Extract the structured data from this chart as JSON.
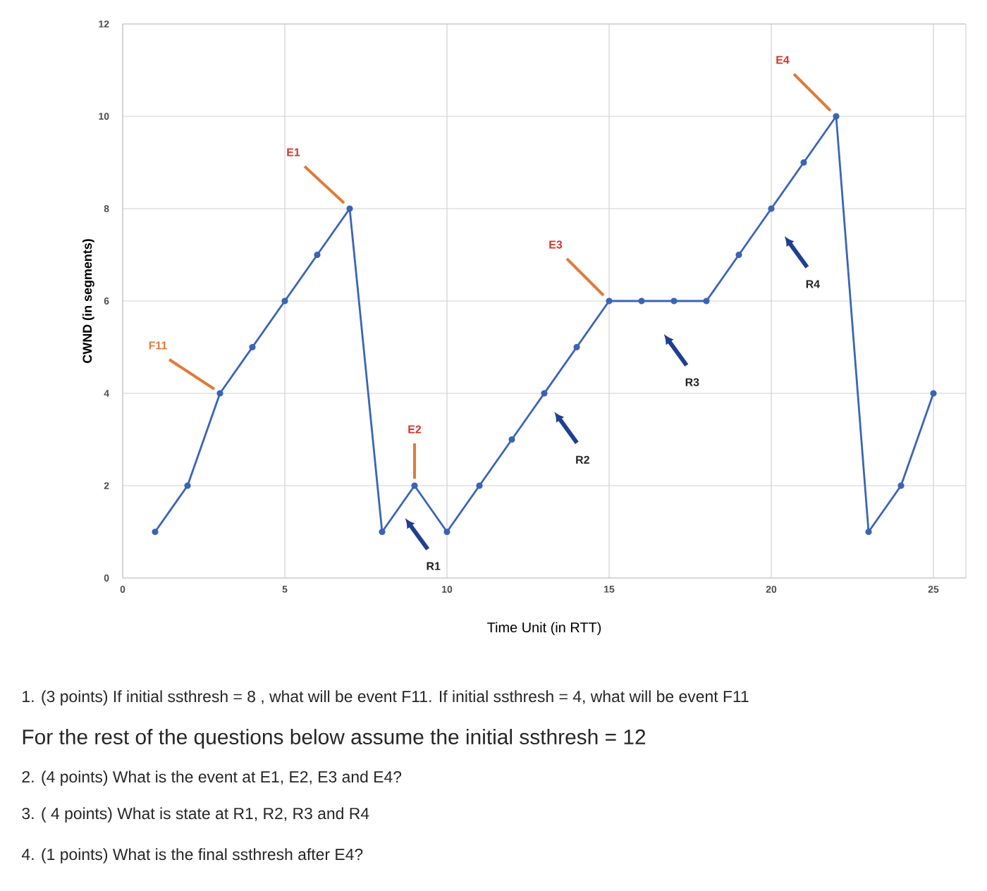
{
  "chart_data": {
    "type": "line",
    "xlabel": "Time Unit (in RTT)",
    "ylabel": "CWND (in segments)",
    "x": [
      1,
      2,
      3,
      4,
      5,
      6,
      7,
      8,
      9,
      10,
      11,
      12,
      13,
      14,
      15,
      16,
      17,
      18,
      19,
      20,
      21,
      22,
      23,
      24,
      25
    ],
    "values": [
      1,
      2,
      4,
      5,
      6,
      7,
      8,
      1,
      2,
      1,
      2,
      3,
      4,
      5,
      6,
      6,
      6,
      6,
      7,
      8,
      9,
      10,
      1,
      2,
      4
    ],
    "color": "#3b64b6",
    "marker": "circle",
    "line_style": "solid",
    "grid": true,
    "xlim": [
      0,
      26
    ],
    "xticks": [
      0,
      5,
      10,
      15,
      20,
      25
    ],
    "ylim": [
      0,
      12
    ],
    "yticks": [
      0,
      2,
      4,
      6,
      8,
      10,
      12
    ],
    "annotations": [
      {
        "text": "F11",
        "x": 3,
        "y": 4
      },
      {
        "text": "E1",
        "x": 7,
        "y": 8
      },
      {
        "text": "E2",
        "x": 9,
        "y": 2
      },
      {
        "text": "E3",
        "x": 15,
        "y": 6
      },
      {
        "text": "E4",
        "x": 22,
        "y": 10
      },
      "R1",
      "R2",
      "R3",
      "R4",
      "1. (3 points) If initial ssthresh = 8 , what will be event F11. If initial ssthresh = 4, what will be event F11",
      "For the rest of the questions below assume the initial ssthresh = 12",
      "2. (4 points) What is the event at E1, E2, E3 and E4?",
      "3. ( 4 points) What is state at R1, R2, R3 and R4",
      "4. (1 points) What is the final ssthresh after E4?"
    ]
  }
}
